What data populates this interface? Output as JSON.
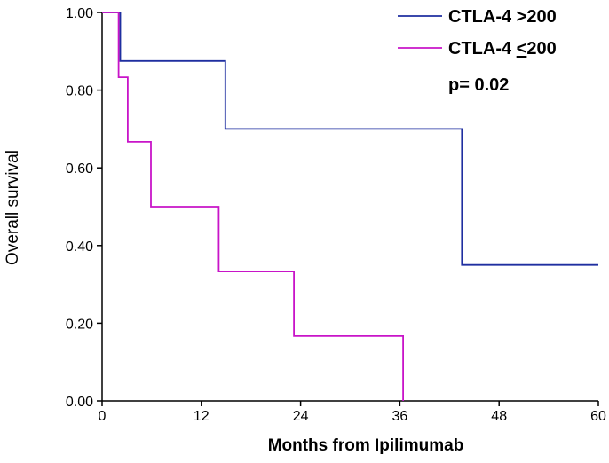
{
  "chart_data": {
    "type": "line",
    "subtype": "kaplan-meier-step",
    "xlabel": "Months from Ipilimumab",
    "ylabel": "Overall survival",
    "xlim": [
      0,
      60
    ],
    "ylim": [
      0,
      1
    ],
    "xticks": [
      0,
      12,
      24,
      36,
      48,
      60
    ],
    "xtick_labels": [
      "0",
      "12",
      "24",
      "36",
      "48",
      "60"
    ],
    "yticks": [
      0,
      0.2,
      0.4,
      0.6,
      0.8,
      1.0
    ],
    "ytick_labels": [
      "0.00",
      "0.20",
      "0.40",
      "0.60",
      "0.80",
      "1.00"
    ],
    "grid": false,
    "legend_position": "top-right",
    "annotation": "p= 0.02",
    "series": [
      {
        "name": "CTLA-4 >200",
        "legend_prefix": "CTLA-4 >",
        "legend_value": "200",
        "legend_underline": false,
        "color": "#1f2fa0",
        "points": [
          [
            0,
            1.0
          ],
          [
            2.2,
            1.0
          ],
          [
            2.2,
            0.875
          ],
          [
            14.9,
            0.875
          ],
          [
            14.9,
            0.7
          ],
          [
            43.5,
            0.7
          ],
          [
            43.5,
            0.35
          ],
          [
            60,
            0.35
          ]
        ]
      },
      {
        "name": "CTLA-4 <200",
        "legend_prefix": "CTLA-4 ",
        "legend_value": "<200",
        "legend_underline": true,
        "color": "#c814c8",
        "points": [
          [
            0,
            1.0
          ],
          [
            2.0,
            1.0
          ],
          [
            2.0,
            0.833
          ],
          [
            3.1,
            0.833
          ],
          [
            3.1,
            0.667
          ],
          [
            5.9,
            0.667
          ],
          [
            5.9,
            0.5
          ],
          [
            14.1,
            0.5
          ],
          [
            14.1,
            0.333
          ],
          [
            23.2,
            0.333
          ],
          [
            23.2,
            0.167
          ],
          [
            36.4,
            0.167
          ],
          [
            36.4,
            0.0
          ]
        ]
      }
    ]
  }
}
